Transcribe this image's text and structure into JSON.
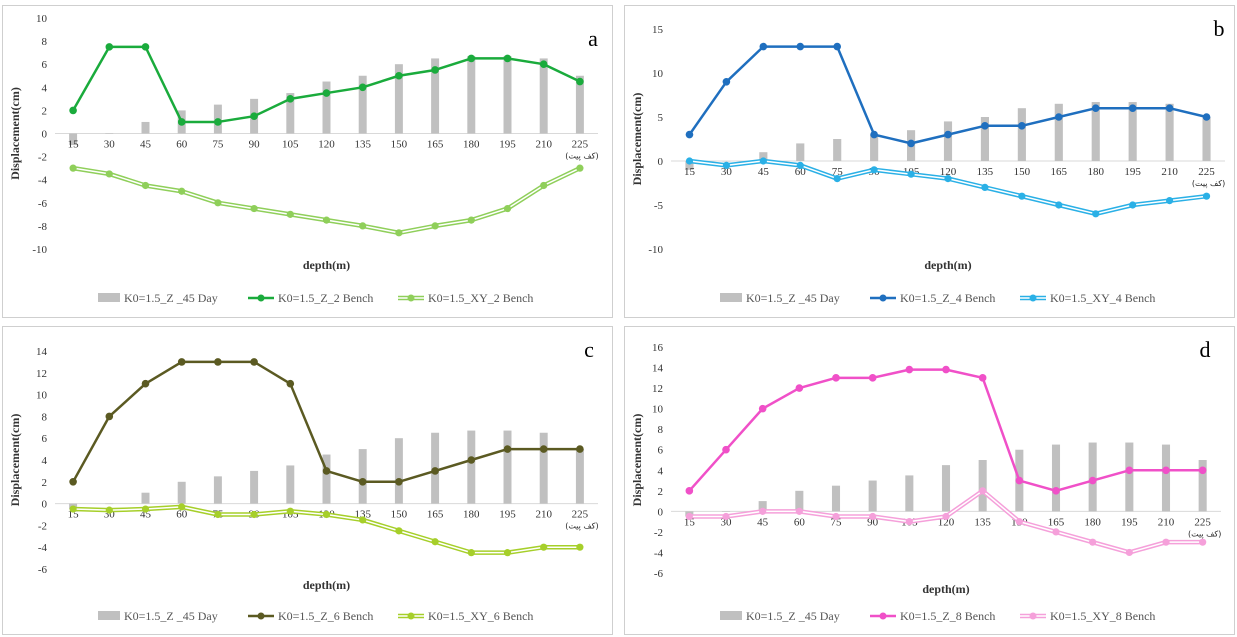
{
  "chart_data": [
    {
      "type": "bar+line",
      "panel_letter": "a",
      "xlabel": "depth(m)",
      "ylabel": "Displacement(cm)",
      "categories": [
        "15",
        "30",
        "45",
        "60",
        "75",
        "90",
        "105",
        "120",
        "135",
        "150",
        "165",
        "180",
        "195",
        "210",
        "225"
      ],
      "last_category_note": "(کف پیت)",
      "ylim": [
        -10,
        10
      ],
      "yticks": [
        -10,
        -8,
        -6,
        -4,
        -2,
        0,
        2,
        4,
        6,
        8,
        10
      ],
      "grid": false,
      "legend_position": "bottom",
      "series": [
        {
          "name": "K0=1.5_Z _45 Day",
          "kind": "bar",
          "color": "#c0c0c0",
          "values": [
            -1,
            0,
            1,
            2,
            2.5,
            3,
            3.5,
            4.5,
            5,
            6,
            6.5,
            6.7,
            6.7,
            6.5,
            5
          ]
        },
        {
          "name": "K0=1.5_Z_2 Bench",
          "kind": "line",
          "color": "#1aab3c",
          "values": [
            2,
            7.5,
            7.5,
            1,
            1,
            1.5,
            3,
            3.5,
            4,
            5,
            5.5,
            6.5,
            6.5,
            6,
            4.5
          ]
        },
        {
          "name": "K0=1.5_XY_2 Bench",
          "kind": "double-line",
          "color": "#8fcf5a",
          "values": [
            -3,
            -3.5,
            -4.5,
            -5,
            -6,
            -6.5,
            -7,
            -7.5,
            -8,
            -8.6,
            -8,
            -7.5,
            -6.5,
            -4.5,
            -3
          ]
        }
      ]
    },
    {
      "type": "bar+line",
      "panel_letter": "b",
      "xlabel": "depth(m)",
      "ylabel": "Displacement(cm)",
      "categories": [
        "15",
        "30",
        "45",
        "60",
        "75",
        "90",
        "105",
        "120",
        "135",
        "150",
        "165",
        "180",
        "195",
        "210",
        "225"
      ],
      "last_category_note": "(کف پیت)",
      "ylim": [
        -10,
        15
      ],
      "yticks": [
        -10,
        -5,
        0,
        5,
        10,
        15
      ],
      "grid": false,
      "legend_position": "bottom",
      "series": [
        {
          "name": "K0=1.5_Z _45 Day",
          "kind": "bar",
          "color": "#c0c0c0",
          "values": [
            -1,
            0,
            1,
            2,
            2.5,
            3,
            3.5,
            4.5,
            5,
            6,
            6.5,
            6.7,
            6.7,
            6.5,
            5
          ]
        },
        {
          "name": "K0=1.5_Z_4 Bench",
          "kind": "line",
          "color": "#1f6fbf",
          "values": [
            3,
            9,
            13,
            13,
            13,
            3,
            2,
            3,
            4,
            4,
            5,
            6,
            6,
            6,
            5
          ]
        },
        {
          "name": "K0=1.5_XY_4 Bench",
          "kind": "double-line",
          "color": "#2ab0e6",
          "values": [
            0,
            -0.5,
            0,
            -0.5,
            -2,
            -1,
            -1.5,
            -2,
            -3,
            -4,
            -5,
            -6,
            -5,
            -4.5,
            -4
          ]
        }
      ]
    },
    {
      "type": "bar+line",
      "panel_letter": "c",
      "xlabel": "depth(m)",
      "ylabel": "Displacement(cm)",
      "categories": [
        "15",
        "30",
        "45",
        "60",
        "75",
        "90",
        "105",
        "120",
        "135",
        "150",
        "165",
        "180",
        "195",
        "210",
        "225"
      ],
      "last_category_note": "(کف پیت)",
      "ylim": [
        -6,
        14
      ],
      "yticks": [
        -6,
        -4,
        -2,
        0,
        2,
        4,
        6,
        8,
        10,
        12,
        14
      ],
      "grid": false,
      "legend_position": "bottom",
      "series": [
        {
          "name": "K0=1.5_Z _45 Day",
          "kind": "bar",
          "color": "#c0c0c0",
          "values": [
            -0.5,
            0,
            1,
            2,
            2.5,
            3,
            3.5,
            4.5,
            5,
            6,
            6.5,
            6.7,
            6.7,
            6.5,
            5
          ]
        },
        {
          "name": "K0=1.5_Z_6 Bench",
          "kind": "line",
          "color": "#5b5a22",
          "values": [
            2,
            8,
            11,
            13,
            13,
            13,
            11,
            3,
            2,
            2,
            3,
            4,
            5,
            5,
            5
          ]
        },
        {
          "name": "K0=1.5_XY_6 Bench",
          "kind": "double-line",
          "color": "#a6cf2a",
          "values": [
            -0.5,
            -0.6,
            -0.5,
            -0.3,
            -1,
            -1,
            -0.7,
            -1,
            -1.5,
            -2.5,
            -3.5,
            -4.5,
            -4.5,
            -4,
            -4
          ]
        }
      ]
    },
    {
      "type": "bar+line",
      "panel_letter": "d",
      "xlabel": "depth(m)",
      "ylabel": "Displacement(cm)",
      "categories": [
        "15",
        "30",
        "45",
        "60",
        "75",
        "90",
        "105",
        "120",
        "135",
        "150",
        "165",
        "180",
        "195",
        "210",
        "225"
      ],
      "last_category_note": "(کف پیت)",
      "ylim": [
        -6,
        16
      ],
      "yticks": [
        -6,
        -4,
        -2,
        0,
        2,
        4,
        6,
        8,
        10,
        12,
        14,
        16
      ],
      "grid": false,
      "legend_position": "bottom",
      "series": [
        {
          "name": "K0=1.5_Z _45 Day",
          "kind": "bar",
          "color": "#c0c0c0",
          "values": [
            -0.5,
            0,
            1,
            2,
            2.5,
            3,
            3.5,
            4.5,
            5,
            6,
            6.5,
            6.7,
            6.7,
            6.5,
            5
          ]
        },
        {
          "name": "K0=1.5_Z_8 Bench",
          "kind": "line",
          "color": "#f050c8",
          "values": [
            2,
            6,
            10,
            12,
            13,
            13,
            13.8,
            13.8,
            13,
            3,
            2,
            3,
            4,
            4,
            4
          ]
        },
        {
          "name": "K0=1.5_XY_8 Bench",
          "kind": "double-line",
          "color": "#f5a0da",
          "values": [
            -0.5,
            -0.5,
            0,
            0,
            -0.5,
            -0.5,
            -1,
            -0.5,
            2,
            -1,
            -2,
            -3,
            -4,
            -3,
            -3
          ]
        }
      ]
    }
  ]
}
